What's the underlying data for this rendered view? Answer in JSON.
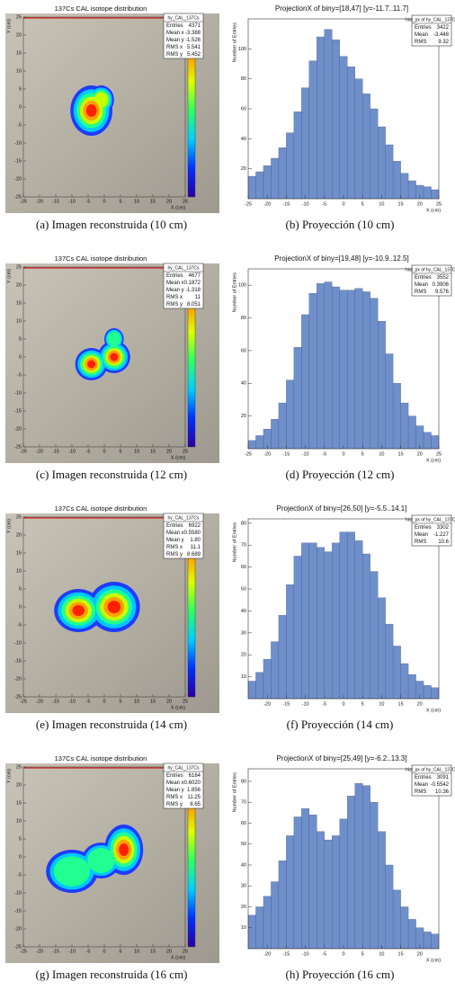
{
  "rows": [
    {
      "image": {
        "title": "137Cs CAL isotope distribution",
        "stats_name": "hy_CAL_137Cs",
        "stats": [
          [
            "Entries",
            "4371"
          ],
          [
            "Mean x",
            "-3.388"
          ],
          [
            "Mean y",
            "-1.526"
          ],
          [
            "RMS x",
            "5.541"
          ],
          [
            "RMS y",
            "5.452"
          ]
        ],
        "xlabel": "X (cm)",
        "ylabel": "Y (cm)",
        "xticks": [
          -25,
          -20,
          -15,
          -10,
          -5,
          0,
          5,
          10,
          15,
          20,
          25
        ],
        "yticks": [
          -25,
          -20,
          -15,
          -10,
          -5,
          0,
          5,
          10,
          15,
          20,
          25
        ],
        "caption": "(a) Imagen reconstruida (10 cm)"
      },
      "projection": {
        "type": "histogram",
        "title": "ProjectionX of biny=[18,47] [y=-11.7..11.7]",
        "stats_name": "hist_px of hy_CAL_137Cs",
        "stats": [
          [
            "Entries",
            "3422"
          ],
          [
            "Mean",
            "-3.448"
          ],
          [
            "RMS",
            "9.32"
          ]
        ],
        "xlabel": "X (cm)",
        "ylabel": "Number of Entries",
        "bins": [
          -25,
          -23,
          -21,
          -19,
          -17,
          -15,
          -13,
          -11,
          -9,
          -7,
          -5,
          -3,
          -1,
          1,
          3,
          5,
          7,
          9,
          11,
          13,
          15,
          17,
          19,
          21,
          23,
          25
        ],
        "counts": [
          15,
          18,
          22,
          27,
          34,
          44,
          58,
          74,
          92,
          108,
          113,
          106,
          95,
          88,
          80,
          70,
          60,
          48,
          36,
          25,
          17,
          12,
          9,
          8,
          6
        ],
        "xlim": [
          -25,
          25
        ],
        "ylim": [
          0,
          120
        ],
        "xticks": [
          -25,
          -20,
          -15,
          -10,
          -5,
          0,
          5,
          10,
          15,
          20,
          25
        ],
        "yticks": [
          20,
          40,
          60,
          80,
          100
        ],
        "caption": "(b) Proyección (10 cm)"
      }
    },
    {
      "image": {
        "title": "137Cs CAL isotope distribution",
        "stats_name": "hy_CAL_137Cs",
        "stats": [
          [
            "Entries",
            "4677"
          ],
          [
            "Mean x",
            "0.1872"
          ],
          [
            "Mean y",
            "-1.318"
          ],
          [
            "RMS x",
            "11"
          ],
          [
            "RMS y",
            "8.051"
          ]
        ],
        "xlabel": "X (cm)",
        "ylabel": "Y (cm)",
        "xticks": [
          -25,
          -20,
          -15,
          -10,
          -5,
          0,
          5,
          10,
          15,
          20,
          25
        ],
        "yticks": [
          -25,
          -20,
          -15,
          -10,
          -5,
          0,
          5,
          10,
          15,
          20,
          25
        ],
        "caption": "(c) Imagen reconstruida (12 cm)"
      },
      "projection": {
        "type": "histogram",
        "title": "ProjectionX of biny=[19,48] [y=-10.9..12.5]",
        "stats_name": "hist_px of hy_CAL_137Cs",
        "stats": [
          [
            "Entries",
            "3552"
          ],
          [
            "Mean",
            "0.3906"
          ],
          [
            "RMS",
            "9.576"
          ]
        ],
        "xlabel": "X (cm)",
        "ylabel": "Number of Entries",
        "bins": [
          -25,
          -23,
          -21,
          -19,
          -17,
          -15,
          -13,
          -11,
          -9,
          -7,
          -5,
          -3,
          -1,
          1,
          3,
          5,
          7,
          9,
          11,
          13,
          15,
          17,
          19,
          21,
          23,
          25
        ],
        "counts": [
          5,
          8,
          12,
          18,
          28,
          42,
          62,
          82,
          95,
          101,
          102,
          99,
          97,
          97,
          98,
          96,
          92,
          78,
          58,
          40,
          28,
          20,
          14,
          10,
          8
        ],
        "xlim": [
          -25,
          25
        ],
        "ylim": [
          0,
          110
        ],
        "xticks": [
          -25,
          -20,
          -15,
          -10,
          -5,
          0,
          5,
          10,
          15,
          20,
          25
        ],
        "yticks": [
          20,
          40,
          60,
          80,
          100
        ],
        "caption": "(d) Proyección (12 cm)"
      }
    },
    {
      "image": {
        "title": "137Cs CAL isotope distribution",
        "stats_name": "hy_CAL_137Cs",
        "stats": [
          [
            "Entries",
            "6922"
          ],
          [
            "Mean x",
            "0.5580"
          ],
          [
            "Mean y",
            "1.80"
          ],
          [
            "RMS x",
            "11.1"
          ],
          [
            "RMS y",
            "8.689"
          ]
        ],
        "xlabel": "X (cm)",
        "ylabel": "Y (cm)",
        "xticks": [
          -25,
          -20,
          -15,
          -10,
          -5,
          0,
          5,
          10,
          15,
          20,
          25
        ],
        "yticks": [
          -25,
          -20,
          -15,
          -10,
          -5,
          0,
          5,
          10,
          15,
          20,
          25
        ],
        "caption": "(e) Imagen reconstruida (14 cm)"
      },
      "projection": {
        "type": "histogram",
        "title": "ProjectionX of biny=[26,50] [y=-5.5..14.1]",
        "stats_name": "hist_px of hy_CAL_137Cs",
        "stats": [
          [
            "Entries",
            "3302"
          ],
          [
            "Mean",
            "-1.227"
          ],
          [
            "RMS",
            "10.6"
          ]
        ],
        "xlabel": "X (cm)",
        "ylabel": "Number of Entries",
        "bins": [
          -25,
          -23,
          -21,
          -19,
          -17,
          -15,
          -13,
          -11,
          -9,
          -7,
          -5,
          -3,
          -1,
          1,
          3,
          5,
          7,
          9,
          11,
          13,
          15,
          17,
          19,
          21,
          23,
          25
        ],
        "counts": [
          8,
          12,
          18,
          26,
          38,
          52,
          65,
          71,
          71,
          69,
          67,
          71,
          76,
          76,
          72,
          66,
          58,
          46,
          34,
          24,
          16,
          11,
          8,
          6,
          5
        ],
        "xlim": [
          -25,
          25
        ],
        "ylim": [
          0,
          82
        ],
        "xticks": [
          -20,
          -15,
          -10,
          -5,
          0,
          5,
          10,
          15,
          20
        ],
        "yticks": [
          10,
          20,
          30,
          40,
          50,
          60,
          70,
          80
        ],
        "caption": "(f) Proyección (14 cm)"
      }
    },
    {
      "image": {
        "title": "137Cs CAL isotope distribution",
        "stats_name": "hy_CAL_137Cs",
        "stats": [
          [
            "Entries",
            "6164"
          ],
          [
            "Mean x",
            "0.6020"
          ],
          [
            "Mean y",
            "1.856"
          ],
          [
            "RMS x",
            "11.25"
          ],
          [
            "RMS y",
            "8.65"
          ]
        ],
        "xlabel": "X (cm)",
        "ylabel": "Y (cm)",
        "xticks": [
          -25,
          -20,
          -15,
          -10,
          -5,
          0,
          5,
          10,
          15,
          20,
          25
        ],
        "yticks": [
          -25,
          -20,
          -15,
          -10,
          -5,
          0,
          5,
          10,
          15,
          20,
          25
        ],
        "caption": "(g) Imagen reconstruida (16 cm)"
      },
      "projection": {
        "type": "histogram",
        "title": "ProjectionX of biny=[25,49] [y=-6.2..13.3]",
        "stats_name": "hist_px of hy_CAL_137Cs",
        "stats": [
          [
            "Entries",
            "3091"
          ],
          [
            "Mean",
            "-0.5542"
          ],
          [
            "RMS",
            "10.36"
          ]
        ],
        "xlabel": "X (cm)",
        "ylabel": "Number of Entries",
        "bins": [
          -25,
          -23,
          -21,
          -19,
          -17,
          -15,
          -13,
          -11,
          -9,
          -7,
          -5,
          -3,
          -1,
          1,
          3,
          5,
          7,
          9,
          11,
          13,
          15,
          17,
          19,
          21,
          23,
          25
        ],
        "counts": [
          16,
          20,
          25,
          32,
          42,
          54,
          63,
          67,
          64,
          56,
          52,
          54,
          62,
          73,
          79,
          78,
          70,
          56,
          40,
          28,
          20,
          14,
          10,
          8,
          7
        ],
        "xlim": [
          -25,
          25
        ],
        "ylim": [
          0,
          86
        ],
        "xticks": [
          -20,
          -15,
          -10,
          -5,
          0,
          5,
          10,
          15,
          20
        ],
        "yticks": [
          10,
          20,
          30,
          40,
          50,
          60,
          70,
          80
        ],
        "caption": "(h) Proyección (16 cm)"
      }
    }
  ]
}
